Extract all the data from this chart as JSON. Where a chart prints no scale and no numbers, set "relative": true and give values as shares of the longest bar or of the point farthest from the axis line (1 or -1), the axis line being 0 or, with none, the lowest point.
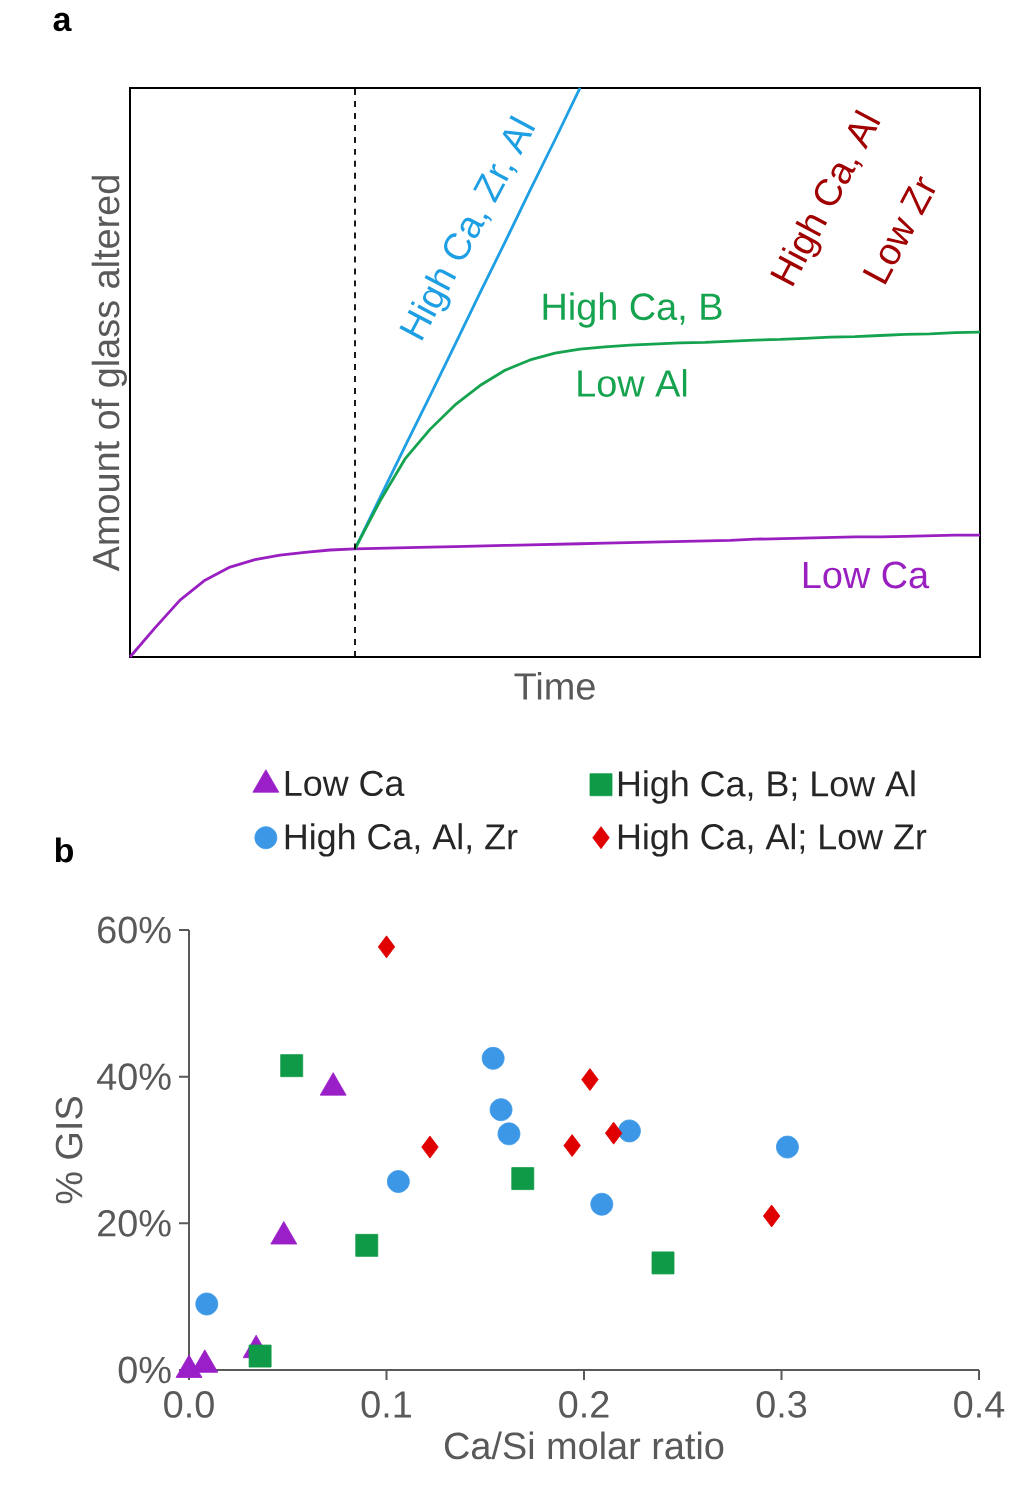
{
  "chart_data": [
    {
      "type": "line",
      "title": "a",
      "xlabel": "Time",
      "ylabel": "Amount of glass altered",
      "relative": true,
      "categories": [
        null,
        null,
        null,
        null,
        null,
        null,
        null,
        null,
        null,
        null,
        null,
        null,
        null,
        null,
        null,
        null,
        null,
        null,
        null,
        null,
        null,
        null,
        null,
        null,
        null,
        null,
        null,
        null,
        null,
        null,
        null,
        null,
        null,
        null,
        null
      ],
      "series": [
        {
          "name": "Low Ca",
          "color": "#9a1fc0",
          "values": [
            0,
            0.051,
            0.1,
            0.135,
            0.158,
            0.171,
            0.179,
            0.184,
            0.188,
            0.19,
            0.191,
            0.192,
            0.193,
            0.194,
            0.195,
            0.196,
            0.197,
            0.198,
            0.199,
            0.2,
            0.201,
            0.202,
            0.203,
            0.204,
            0.205,
            0.207,
            0.208,
            0.209,
            0.21,
            0.211,
            0.211,
            0.212,
            0.213,
            0.214,
            0.214
          ]
        },
        {
          "name": "High Ca, Zr, Al",
          "color": "#1e9fe3",
          "values": [
            null,
            null,
            null,
            null,
            null,
            null,
            null,
            null,
            null,
            0.19,
            0.28,
            0.37,
            0.459,
            0.549,
            0.64,
            0.729,
            0.82,
            0.909,
            1.0,
            null,
            null,
            null,
            null,
            null,
            null,
            null,
            null,
            null,
            null,
            null,
            null,
            null,
            null,
            null,
            null
          ]
        },
        {
          "color": "#16a34f",
          "values": [
            null,
            null,
            null,
            null,
            null,
            null,
            null,
            null,
            null,
            0.19,
            0.274,
            0.348,
            0.4,
            0.443,
            0.477,
            0.504,
            0.522,
            0.534,
            0.541,
            0.545,
            0.548,
            0.55,
            0.552,
            0.553,
            0.555,
            0.557,
            0.558,
            0.56,
            0.562,
            0.563,
            0.565,
            0.567,
            0.568,
            0.57,
            0.571
          ]
        }
      ],
      "annotations": [
        "High Ca, B",
        "Low Al",
        "High Ca, Al",
        "Low Zr"
      ]
    },
    {
      "type": "scatter",
      "title": "b",
      "xlabel": "Ca/Si molar ratio",
      "ylabel": "% GIS",
      "legend": "top",
      "xlim": [
        0,
        0.4
      ],
      "xticks": [
        {
          "value": 0,
          "label": "0.0"
        },
        0.1,
        0.2,
        0.3,
        0.4
      ],
      "ylim": [
        0,
        60
      ],
      "yticks": [
        {
          "value": 0,
          "label": "0%"
        },
        {
          "value": 20,
          "label": "20%"
        },
        {
          "value": 40,
          "label": "40%"
        },
        {
          "value": 60,
          "label": "60%"
        }
      ],
      "series": [
        {
          "name": "Low Ca",
          "color": "#9a1fc8",
          "marker": "triangle",
          "x": [
            0.0,
            0.008,
            0.034,
            0.048,
            0.073
          ],
          "values": [
            0,
            0.7,
            2.7,
            18.2,
            38.5
          ]
        },
        {
          "name": "High Ca, B; Low Al",
          "color": "#0f9a48",
          "marker": "square",
          "x": [
            0.036,
            0.052,
            0.09,
            0.169,
            0.24
          ],
          "values": [
            1.9,
            41.5,
            17.0,
            26.1,
            14.6
          ]
        },
        {
          "name": "High Ca, Al, Zr",
          "color": "#3c98e6",
          "marker": "circle",
          "x": [
            0.009,
            0.106,
            0.154,
            0.158,
            0.162,
            0.209,
            0.223,
            0.303
          ],
          "values": [
            9.0,
            25.7,
            42.5,
            35.5,
            32.2,
            22.6,
            32.6,
            30.4
          ]
        },
        {
          "name": "High Ca, Al; Low Zr",
          "color": "#e00000",
          "marker": "diamond",
          "x": [
            0.1,
            0.122,
            0.194,
            0.203,
            0.215,
            0.295
          ],
          "values": [
            57.7,
            30.4,
            30.6,
            39.6,
            32.3,
            21.0
          ]
        }
      ]
    }
  ]
}
